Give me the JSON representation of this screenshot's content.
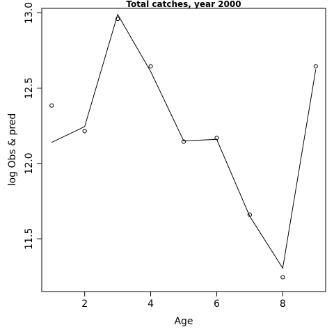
{
  "chart_data": {
    "type": "line",
    "title": "Total catches, year 2000",
    "xlabel": "Age",
    "ylabel": "log Obs & pred",
    "xlim": [
      0.7,
      9.3
    ],
    "ylim": [
      11.15,
      13.03
    ],
    "x_ticks": [
      2,
      4,
      6,
      8
    ],
    "y_ticks": [
      11.5,
      12.0,
      12.5,
      13.0
    ],
    "x_tick_labels": [
      "2",
      "4",
      "6",
      "8"
    ],
    "y_tick_labels": [
      "11.5",
      "12.0",
      "12.5",
      "13.0"
    ],
    "grid": false,
    "series": [
      {
        "kind": "points",
        "x": [
          1,
          2,
          3,
          4,
          5,
          6,
          7,
          8,
          9
        ],
        "y": [
          12.385,
          12.215,
          12.96,
          12.645,
          12.145,
          12.17,
          11.66,
          11.245,
          12.645
        ]
      },
      {
        "kind": "line",
        "x": [
          1,
          2,
          3,
          4,
          5,
          6,
          7,
          8,
          9
        ],
        "y": [
          12.14,
          12.245,
          12.99,
          12.61,
          12.15,
          12.16,
          11.65,
          11.305,
          12.625
        ]
      }
    ]
  }
}
